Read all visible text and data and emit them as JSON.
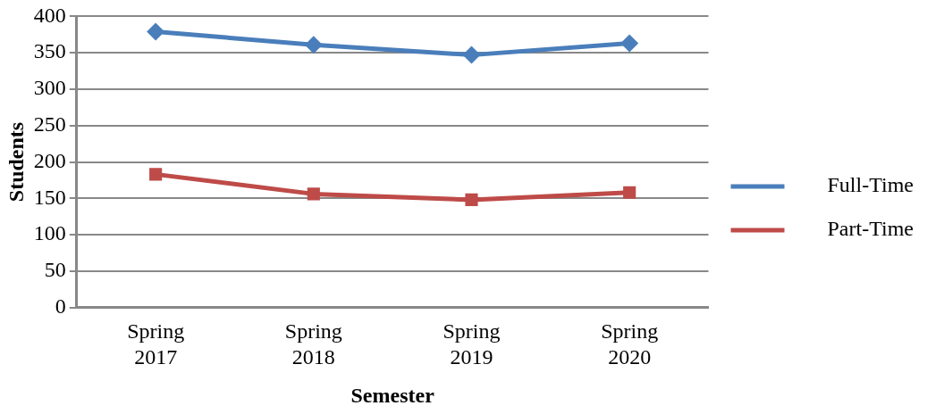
{
  "chart_data": {
    "type": "line",
    "xlabel": "Semester",
    "ylabel": "Students",
    "categories": [
      "Spring 2017",
      "Spring 2018",
      "Spring 2019",
      "Spring 2020"
    ],
    "series": [
      {
        "name": "Full-Time",
        "color": "#4a7ebb",
        "values": [
          379,
          361,
          347,
          363
        ],
        "marker": "diamond"
      },
      {
        "name": "Part-Time",
        "color": "#be4b48",
        "values": [
          183,
          156,
          148,
          158
        ],
        "marker": "square"
      }
    ],
    "ylim": [
      0,
      400
    ],
    "yticks": [
      0,
      50,
      100,
      150,
      200,
      250,
      300,
      350,
      400
    ],
    "grid": "y",
    "legend": "right"
  }
}
